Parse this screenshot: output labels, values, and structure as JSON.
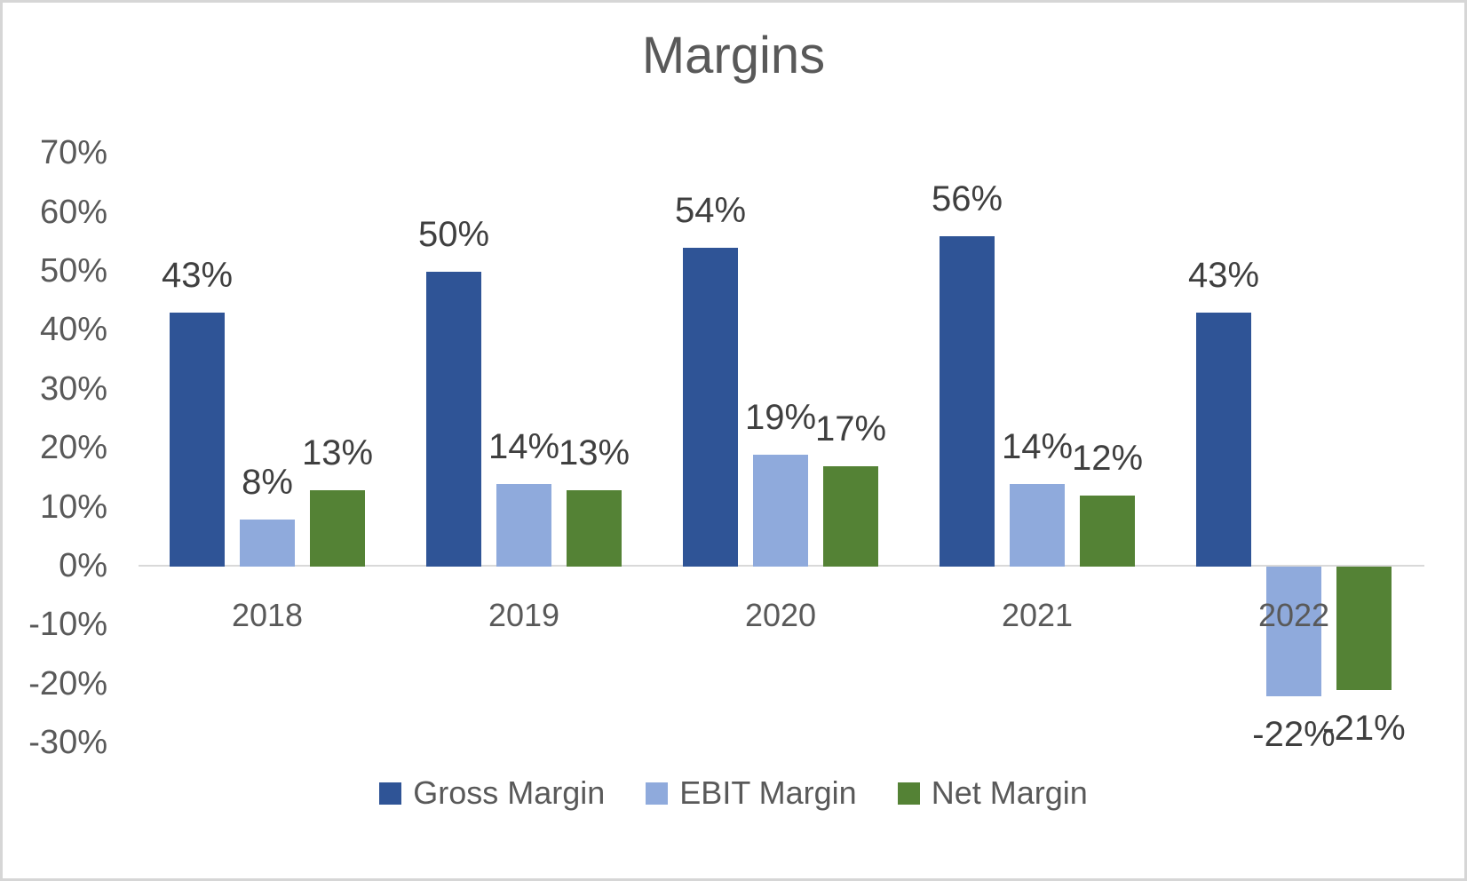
{
  "chart_data": {
    "type": "bar",
    "title": "Margins",
    "categories": [
      "2018",
      "2019",
      "2020",
      "2021",
      "2022"
    ],
    "series": [
      {
        "name": "Gross Margin",
        "color": "#2F5496",
        "values": [
          43,
          50,
          54,
          56,
          43
        ],
        "labels": [
          "43%",
          "50%",
          "54%",
          "56%",
          "43%"
        ]
      },
      {
        "name": "EBIT Margin",
        "color": "#8FAADC",
        "values": [
          8,
          14,
          19,
          14,
          -22
        ],
        "labels": [
          "8%",
          "14%",
          "19%",
          "14%",
          "-22%"
        ]
      },
      {
        "name": "Net Margin",
        "color": "#548235",
        "values": [
          13,
          13,
          17,
          12,
          -21
        ],
        "labels": [
          "13%",
          "13%",
          "17%",
          "12%",
          "-21%"
        ]
      }
    ],
    "y_axis": {
      "min": -30,
      "max": 70,
      "tick_step": 10,
      "ticks": [
        {
          "label": "70%",
          "value": 70
        },
        {
          "label": "60%",
          "value": 60
        },
        {
          "label": "50%",
          "value": 50
        },
        {
          "label": "40%",
          "value": 40
        },
        {
          "label": "30%",
          "value": 30
        },
        {
          "label": "20%",
          "value": 20
        },
        {
          "label": "10%",
          "value": 10
        },
        {
          "label": "0%",
          "value": 0
        },
        {
          "label": "-10%",
          "value": -10
        },
        {
          "label": "-20%",
          "value": -20
        },
        {
          "label": "-30%",
          "value": -30
        }
      ]
    },
    "grid": false,
    "legend_position": "bottom",
    "colors": {
      "axis_line": "#D9D9D9",
      "title_text": "#595959",
      "tick_text": "#595959",
      "category_text": "#595959",
      "data_label_text": "#3F3F3F",
      "legend_text": "#595959",
      "background": "#FFFFFF",
      "border": "#D6D6D6"
    }
  }
}
